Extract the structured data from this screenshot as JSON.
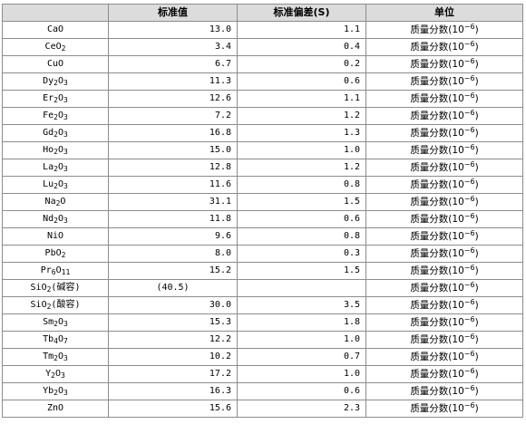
{
  "header": {
    "col_name": "",
    "col_value": "标准值",
    "col_sd": "标准偏差(S)",
    "col_unit": "单位"
  },
  "unit_text": {
    "prefix": "质量分数(10",
    "exp": "−6",
    "suffix": ")"
  },
  "rows": [
    {
      "name": [
        {
          "t": "CaO"
        }
      ],
      "value": "13.0",
      "sd": "1.1"
    },
    {
      "name": [
        {
          "t": "CeO"
        },
        {
          "t": "2",
          "sub": true
        }
      ],
      "value": "3.4",
      "sd": "0.4"
    },
    {
      "name": [
        {
          "t": "CuO"
        }
      ],
      "value": "6.7",
      "sd": "0.2"
    },
    {
      "name": [
        {
          "t": "Dy"
        },
        {
          "t": "2",
          "sub": true
        },
        {
          "t": "O"
        },
        {
          "t": "3",
          "sub": true
        }
      ],
      "value": "11.3",
      "sd": "0.6"
    },
    {
      "name": [
        {
          "t": "Er"
        },
        {
          "t": "2",
          "sub": true
        },
        {
          "t": "O"
        },
        {
          "t": "3",
          "sub": true
        }
      ],
      "value": "12.6",
      "sd": "1.1"
    },
    {
      "name": [
        {
          "t": "Fe"
        },
        {
          "t": "2",
          "sub": true
        },
        {
          "t": "O"
        },
        {
          "t": "3",
          "sub": true
        }
      ],
      "value": "7.2",
      "sd": "1.2"
    },
    {
      "name": [
        {
          "t": "Gd"
        },
        {
          "t": "2",
          "sub": true
        },
        {
          "t": "O"
        },
        {
          "t": "3",
          "sub": true
        }
      ],
      "value": "16.8",
      "sd": "1.3"
    },
    {
      "name": [
        {
          "t": "Ho"
        },
        {
          "t": "2",
          "sub": true
        },
        {
          "t": "O"
        },
        {
          "t": "3",
          "sub": true
        }
      ],
      "value": "15.0",
      "sd": "1.0"
    },
    {
      "name": [
        {
          "t": "La"
        },
        {
          "t": "2",
          "sub": true
        },
        {
          "t": "O"
        },
        {
          "t": "3",
          "sub": true
        }
      ],
      "value": "12.8",
      "sd": "1.2"
    },
    {
      "name": [
        {
          "t": "Lu"
        },
        {
          "t": "2",
          "sub": true
        },
        {
          "t": "O"
        },
        {
          "t": "3",
          "sub": true
        }
      ],
      "value": "11.6",
      "sd": "0.8"
    },
    {
      "name": [
        {
          "t": "Na"
        },
        {
          "t": "2",
          "sub": true
        },
        {
          "t": "O"
        }
      ],
      "value": "31.1",
      "sd": "1.5"
    },
    {
      "name": [
        {
          "t": "Nd"
        },
        {
          "t": "2",
          "sub": true
        },
        {
          "t": "O"
        },
        {
          "t": "3",
          "sub": true
        }
      ],
      "value": "11.8",
      "sd": "0.6"
    },
    {
      "name": [
        {
          "t": "NiO"
        }
      ],
      "value": "9.6",
      "sd": "0.8"
    },
    {
      "name": [
        {
          "t": "PbO"
        },
        {
          "t": "2",
          "sub": true
        }
      ],
      "value": "8.0",
      "sd": "0.3"
    },
    {
      "name": [
        {
          "t": "Pr"
        },
        {
          "t": "6",
          "sub": true
        },
        {
          "t": "O"
        },
        {
          "t": "11",
          "sub": true
        }
      ],
      "value": "15.2",
      "sd": "1.5"
    },
    {
      "name": [
        {
          "t": "SiO"
        },
        {
          "t": "2",
          "sub": true
        },
        {
          "t": "(碱容)"
        }
      ],
      "value": "(40.5)",
      "sd": "",
      "paren": true
    },
    {
      "name": [
        {
          "t": "SiO"
        },
        {
          "t": "2",
          "sub": true
        },
        {
          "t": "(酸容)"
        }
      ],
      "value": "30.0",
      "sd": "3.5"
    },
    {
      "name": [
        {
          "t": "Sm"
        },
        {
          "t": "2",
          "sub": true
        },
        {
          "t": "O"
        },
        {
          "t": "3",
          "sub": true
        }
      ],
      "value": "15.3",
      "sd": "1.8"
    },
    {
      "name": [
        {
          "t": "Tb"
        },
        {
          "t": "4",
          "sub": true
        },
        {
          "t": "O"
        },
        {
          "t": "7",
          "sub": true
        }
      ],
      "value": "12.2",
      "sd": "1.0"
    },
    {
      "name": [
        {
          "t": "Tm"
        },
        {
          "t": "2",
          "sub": true
        },
        {
          "t": "O"
        },
        {
          "t": "3",
          "sub": true
        }
      ],
      "value": "10.2",
      "sd": "0.7"
    },
    {
      "name": [
        {
          "t": "Y"
        },
        {
          "t": "2",
          "sub": true
        },
        {
          "t": "O"
        },
        {
          "t": "3",
          "sub": true
        }
      ],
      "value": "17.2",
      "sd": "1.0"
    },
    {
      "name": [
        {
          "t": "Yb"
        },
        {
          "t": "2",
          "sub": true
        },
        {
          "t": "O"
        },
        {
          "t": "3",
          "sub": true
        }
      ],
      "value": "16.3",
      "sd": "0.6"
    },
    {
      "name": [
        {
          "t": "ZnO"
        }
      ],
      "value": "15.6",
      "sd": "2.3"
    }
  ]
}
